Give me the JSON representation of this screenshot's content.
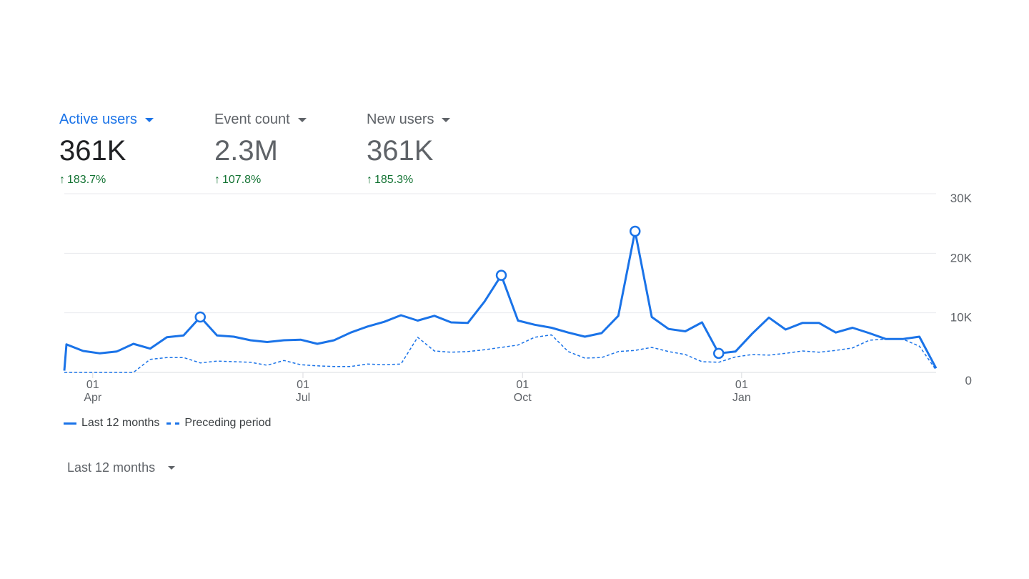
{
  "metrics": [
    {
      "label": "Active users",
      "value": "361K",
      "change": "183.7%",
      "arrow": "↑",
      "active": true
    },
    {
      "label": "Event count",
      "value": "2.3M",
      "change": "107.8%",
      "arrow": "↑",
      "active": false
    },
    {
      "label": "New users",
      "value": "361K",
      "change": "185.3%",
      "arrow": "↑",
      "active": false
    }
  ],
  "legend": {
    "current": "Last 12 months",
    "previous": "Preceding period"
  },
  "date_range": {
    "selected": "Last 12 months"
  },
  "colors": {
    "accent": "#1a73e8",
    "positive": "#137333",
    "grid": "#e0e0e0",
    "text": "#5f6368"
  },
  "chart_data": {
    "type": "line",
    "title": "Active users",
    "x_unit": "weeks",
    "xlim": [
      0,
      52.13
    ],
    "ylim": [
      0,
      30000
    ],
    "grid": true,
    "legend_position": "bottom-left",
    "y_ticks": [
      {
        "value": 0,
        "label": "0"
      },
      {
        "value": 10000,
        "label": "10K"
      },
      {
        "value": 20000,
        "label": "20K"
      },
      {
        "value": 30000,
        "label": "30K"
      }
    ],
    "x_ticks": [
      {
        "value": 1.7,
        "day": "01",
        "month": "Apr"
      },
      {
        "value": 14.27,
        "day": "01",
        "month": "Jul"
      },
      {
        "value": 27.4,
        "day": "01",
        "month": "Oct"
      },
      {
        "value": 40.5,
        "day": "01",
        "month": "Jan"
      }
    ],
    "series": [
      {
        "name": "Last 12 months",
        "style": "solid",
        "values": [
          300,
          4700,
          3600,
          3200,
          3500,
          4800,
          4000,
          5900,
          6200,
          9300,
          6200,
          6000,
          5400,
          5100,
          5400,
          5500,
          4800,
          5400,
          6700,
          7700,
          8500,
          9600,
          8700,
          9500,
          8400,
          8300,
          11900,
          16300,
          8700,
          8000,
          7500,
          6700,
          6000,
          6600,
          9500,
          23700,
          9300,
          7300,
          6900,
          8400,
          3200,
          3500,
          6500,
          9200,
          7200,
          8300,
          8300,
          6700,
          7500,
          6600,
          5600,
          5600,
          6000,
          700
        ],
        "markers": [
          9,
          27,
          35,
          40
        ]
      },
      {
        "name": "Preceding period",
        "style": "dashed",
        "values": [
          0,
          0,
          0,
          0,
          0,
          0,
          2200,
          2500,
          2500,
          1600,
          1900,
          1800,
          1700,
          1200,
          2000,
          1300,
          1100,
          1000,
          1000,
          1400,
          1300,
          1400,
          5900,
          3600,
          3400,
          3500,
          3800,
          4200,
          4600,
          5900,
          6300,
          3500,
          2400,
          2500,
          3500,
          3700,
          4200,
          3500,
          3000,
          1800,
          1700,
          2600,
          3000,
          2900,
          3200,
          3600,
          3400,
          3700,
          4100,
          5400,
          5600,
          5600,
          4400,
          400
        ]
      }
    ]
  }
}
